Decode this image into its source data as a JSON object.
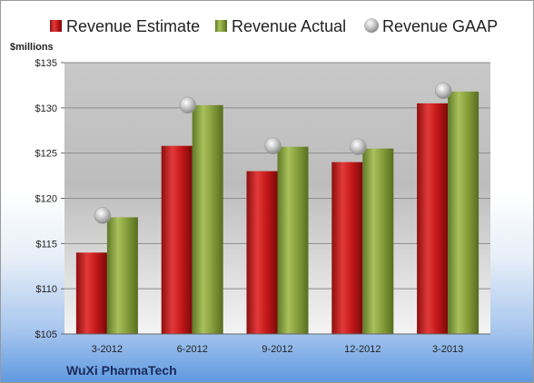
{
  "chart_data": {
    "type": "bar",
    "unit_label": "$millions",
    "brand": "WuXi PharmaTech",
    "categories": [
      "3-2012",
      "6-2012",
      "9-2012",
      "12-2012",
      "3-2013"
    ],
    "series": [
      {
        "name": "Revenue Estimate",
        "kind": "bar",
        "color": "#cc1f1f",
        "values": [
          114.0,
          125.8,
          123.0,
          124.0,
          130.5
        ]
      },
      {
        "name": "Revenue Actual",
        "kind": "bar",
        "color": "#8aa23e",
        "values": [
          117.9,
          130.3,
          125.7,
          125.5,
          131.8
        ]
      },
      {
        "name": "Revenue GAAP",
        "kind": "marker",
        "color": "#b8b8b8",
        "values": [
          118.1,
          130.3,
          125.8,
          125.7,
          131.9
        ]
      }
    ],
    "ylim": [
      105,
      135
    ],
    "yticks": [
      105,
      110,
      115,
      120,
      125,
      130,
      135
    ],
    "ytick_labels": [
      "$105",
      "$110",
      "$115",
      "$120",
      "$125",
      "$130",
      "$135"
    ],
    "grid": true,
    "legend_position": "top"
  }
}
